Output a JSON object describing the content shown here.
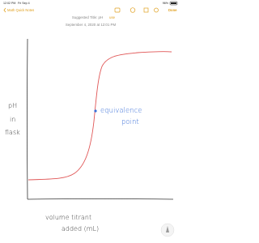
{
  "status_bar": {
    "time": "12:02 PM",
    "date": "Fri Sep 4",
    "battery": "96%"
  },
  "nav": {
    "back": "Math Quick Notes",
    "done": "Done"
  },
  "note": {
    "suggested_title": "Suggested Title: pH",
    "use": "use",
    "date": "September 4, 2020 at 12:01 PM"
  },
  "sketch": {
    "y_label": [
      "pH",
      "in",
      "flask"
    ],
    "annotation": [
      "equivalence",
      "point"
    ],
    "x_label": [
      "volume titrant",
      "added (mL)"
    ]
  }
}
